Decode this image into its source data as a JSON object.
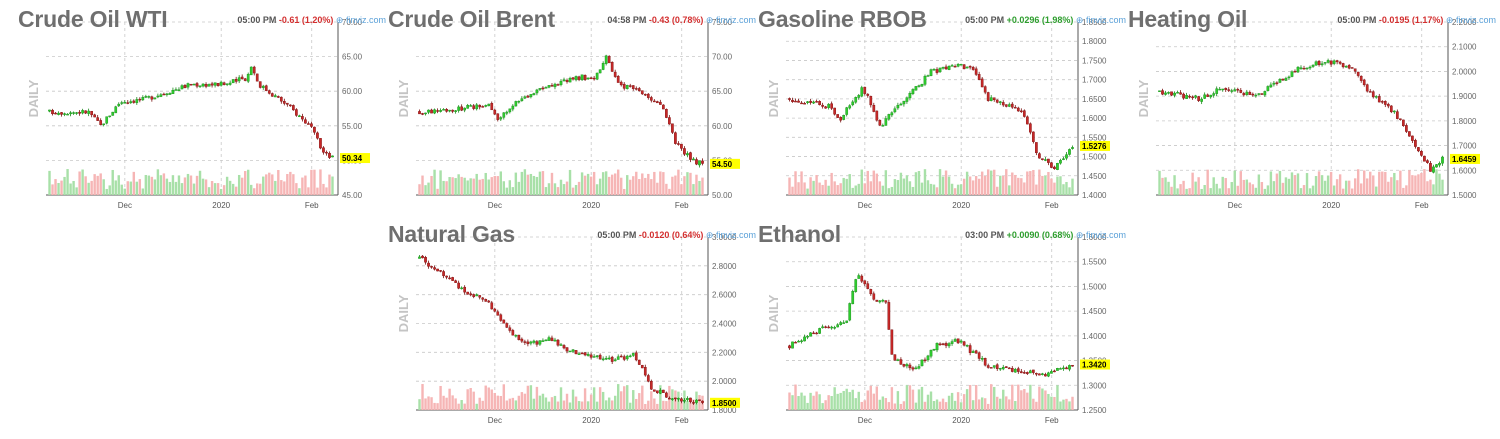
{
  "colors": {
    "up": "#2ecc2e",
    "down": "#c62828",
    "grid": "#c8c8c8",
    "frame": "#555555",
    "vol_up": "#a8e0a8",
    "vol_down": "#f6b5b5",
    "last_price_bg": "#ffff00"
  },
  "brand": "finviz.com",
  "brand_icon": "gear-circle-icon",
  "panels": [
    {
      "title": "Crude Oil WTI",
      "time": "05:00 PM",
      "change": "-0.61 (1.20%)",
      "direction": "down",
      "chart_data": {
        "type": "candlestick",
        "ylabel": "DAILY",
        "ylim": [
          45,
          70
        ],
        "yticks": [
          "70.00",
          "65.00",
          "60.00",
          "55.00",
          "50.00",
          "45.00"
        ],
        "xticks": [
          "Dec",
          "2020",
          "Feb"
        ],
        "last": "50.34",
        "path": [
          [
            0,
            57
          ],
          [
            0.14,
            57
          ],
          [
            0.18,
            55
          ],
          [
            0.25,
            58.5
          ],
          [
            0.33,
            58.8
          ],
          [
            0.5,
            61
          ],
          [
            0.62,
            61
          ],
          [
            0.7,
            62
          ],
          [
            0.71,
            64
          ],
          [
            0.74,
            61
          ],
          [
            0.84,
            58
          ],
          [
            0.92,
            55
          ],
          [
            0.97,
            51
          ],
          [
            1,
            50.34
          ]
        ]
      }
    },
    {
      "title": "Crude Oil Brent",
      "time": "04:58 PM",
      "change": "-0.43 (0.78%)",
      "direction": "down",
      "chart_data": {
        "type": "candlestick",
        "ylabel": "DAILY",
        "ylim": [
          50,
          75
        ],
        "yticks": [
          "75.00",
          "70.00",
          "65.00",
          "60.00",
          "55.00",
          "50.00"
        ],
        "xticks": [
          "Dec",
          "2020",
          "Feb"
        ],
        "last": "54.50",
        "path": [
          [
            0,
            62
          ],
          [
            0.14,
            62.5
          ],
          [
            0.25,
            63
          ],
          [
            0.28,
            61
          ],
          [
            0.36,
            64
          ],
          [
            0.54,
            67
          ],
          [
            0.62,
            67
          ],
          [
            0.66,
            70
          ],
          [
            0.7,
            66
          ],
          [
            0.78,
            65
          ],
          [
            0.86,
            62.5
          ],
          [
            0.9,
            58
          ],
          [
            0.96,
            55
          ],
          [
            1,
            54.5
          ]
        ]
      }
    },
    {
      "title": "Gasoline RBOB",
      "time": "05:00 PM",
      "change": "+0.0296 (1.98%)",
      "direction": "up",
      "chart_data": {
        "type": "candlestick",
        "ylabel": "DAILY",
        "ylim": [
          1.4,
          1.85
        ],
        "yticks": [
          "1.8500",
          "1.8000",
          "1.7500",
          "1.7000",
          "1.6500",
          "1.6000",
          "1.5500",
          "1.5000",
          "1.4500",
          "1.4000"
        ],
        "xticks": [
          "Dec",
          "2020",
          "Feb"
        ],
        "last": "1.5276",
        "path": [
          [
            0,
            1.65
          ],
          [
            0.14,
            1.63
          ],
          [
            0.18,
            1.6
          ],
          [
            0.26,
            1.68
          ],
          [
            0.32,
            1.58
          ],
          [
            0.4,
            1.64
          ],
          [
            0.5,
            1.72
          ],
          [
            0.6,
            1.74
          ],
          [
            0.66,
            1.72
          ],
          [
            0.7,
            1.65
          ],
          [
            0.82,
            1.62
          ],
          [
            0.88,
            1.5
          ],
          [
            0.94,
            1.47
          ],
          [
            1,
            1.5276
          ]
        ]
      }
    },
    {
      "title": "Heating Oil",
      "time": "05:00 PM",
      "change": "-0.0195 (1.17%)",
      "direction": "down",
      "chart_data": {
        "type": "candlestick",
        "ylabel": "DAILY",
        "ylim": [
          1.5,
          2.2
        ],
        "yticks": [
          "2.2000",
          "2.1000",
          "2.0000",
          "1.9000",
          "1.8000",
          "1.7000",
          "1.6000",
          "1.5000"
        ],
        "xticks": [
          "Dec",
          "2020",
          "Feb"
        ],
        "last": "1.6459",
        "path": [
          [
            0,
            1.92
          ],
          [
            0.14,
            1.89
          ],
          [
            0.22,
            1.93
          ],
          [
            0.34,
            1.9
          ],
          [
            0.5,
            2.02
          ],
          [
            0.6,
            2.04
          ],
          [
            0.68,
            2.02
          ],
          [
            0.74,
            1.92
          ],
          [
            0.84,
            1.82
          ],
          [
            0.9,
            1.7
          ],
          [
            0.96,
            1.6
          ],
          [
            1,
            1.6459
          ]
        ]
      }
    },
    {
      "title": "Natural Gas",
      "time": "05:00 PM",
      "change": "-0.0120 (0.64%)",
      "direction": "down",
      "chart_data": {
        "type": "candlestick",
        "ylabel": "DAILY",
        "ylim": [
          1.8,
          3.0
        ],
        "yticks": [
          "3.0000",
          "2.8000",
          "2.6000",
          "2.4000",
          "2.2000",
          "2.0000",
          "1.8000"
        ],
        "xticks": [
          "Dec",
          "2020",
          "Feb"
        ],
        "last": "1.8500",
        "path": [
          [
            0,
            2.85
          ],
          [
            0.06,
            2.78
          ],
          [
            0.16,
            2.62
          ],
          [
            0.24,
            2.55
          ],
          [
            0.3,
            2.38
          ],
          [
            0.38,
            2.25
          ],
          [
            0.46,
            2.3
          ],
          [
            0.56,
            2.18
          ],
          [
            0.68,
            2.15
          ],
          [
            0.76,
            2.18
          ],
          [
            0.82,
            1.95
          ],
          [
            0.9,
            1.88
          ],
          [
            1,
            1.85
          ]
        ]
      }
    },
    {
      "title": "Ethanol",
      "time": "03:00 PM",
      "change": "+0.0090 (0.68%)",
      "direction": "up",
      "chart_data": {
        "type": "candlestick",
        "ylabel": "DAILY",
        "ylim": [
          1.25,
          1.6
        ],
        "yticks": [
          "1.6000",
          "1.5500",
          "1.5000",
          "1.4500",
          "1.4000",
          "1.3500",
          "1.3000",
          "1.2500"
        ],
        "xticks": [
          "Dec",
          "2020",
          "Feb"
        ],
        "last": "1.3420",
        "path": [
          [
            0,
            1.38
          ],
          [
            0.1,
            1.41
          ],
          [
            0.2,
            1.43
          ],
          [
            0.24,
            1.53
          ],
          [
            0.3,
            1.47
          ],
          [
            0.34,
            1.47
          ],
          [
            0.36,
            1.36
          ],
          [
            0.44,
            1.33
          ],
          [
            0.52,
            1.38
          ],
          [
            0.6,
            1.39
          ],
          [
            0.7,
            1.34
          ],
          [
            0.8,
            1.33
          ],
          [
            0.9,
            1.32
          ],
          [
            1,
            1.342
          ]
        ]
      }
    }
  ]
}
